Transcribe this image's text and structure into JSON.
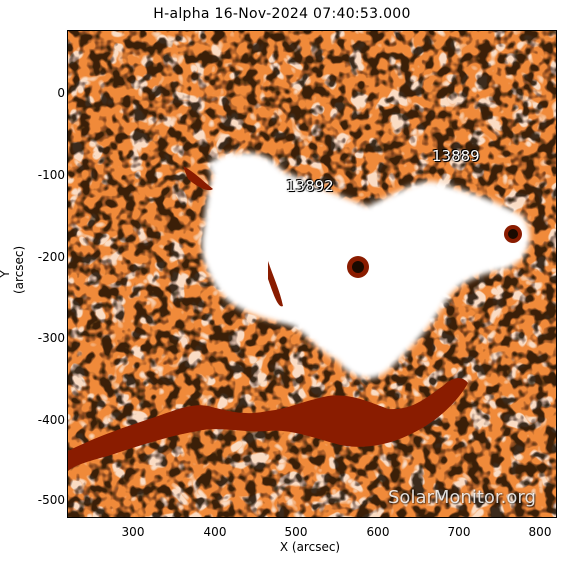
{
  "title": "H-alpha 16-Nov-2024 07:40:53.000",
  "xlabel": "X (arcsec)",
  "ylabel": "Y (arcsec)",
  "watermark": "SolarMonitor.org",
  "regions": [
    "13892",
    "13889"
  ],
  "x_ticks": [
    "300",
    "400",
    "500",
    "600",
    "700",
    "800"
  ],
  "y_ticks": [
    "0",
    "-100",
    "-200",
    "-300",
    "-400",
    "-500"
  ],
  "colors": {
    "background_orange": "#f08a3a",
    "plage_white": "#ffffff",
    "filament_dark": "#8a1c00",
    "dark_specks": "#1a0a00"
  }
}
